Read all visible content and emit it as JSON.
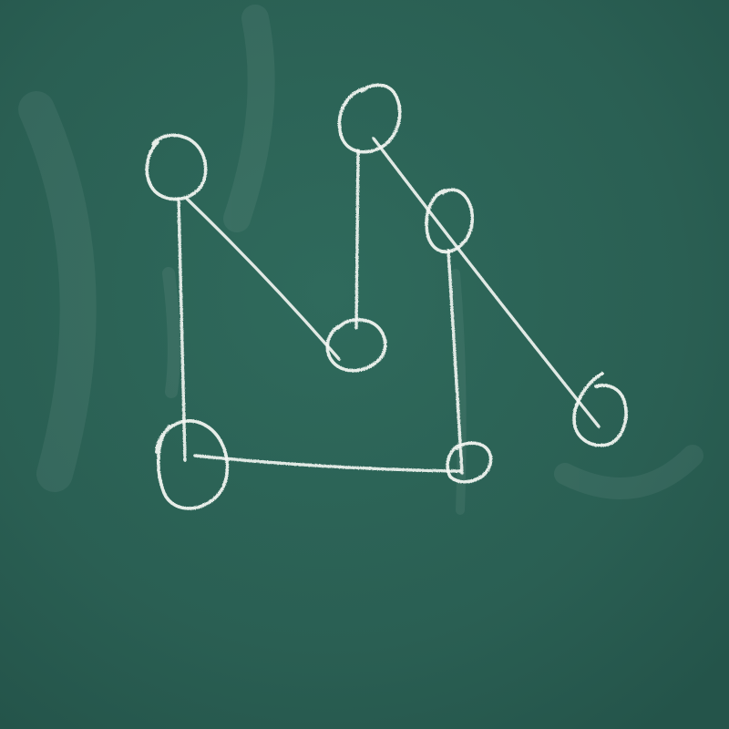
{
  "diagram": {
    "type": "graph",
    "directed": false,
    "nodes": [
      {
        "id": "a",
        "name": "node-top-left"
      },
      {
        "id": "b",
        "name": "node-top-center"
      },
      {
        "id": "c",
        "name": "node-right-upper"
      },
      {
        "id": "d",
        "name": "node-center"
      },
      {
        "id": "e",
        "name": "node-right-lower"
      },
      {
        "id": "f",
        "name": "node-bottom-left"
      },
      {
        "id": "g",
        "name": "node-bottom-right"
      }
    ],
    "edges": [
      {
        "from": "a",
        "to": "d"
      },
      {
        "from": "a",
        "to": "f"
      },
      {
        "from": "b",
        "to": "d"
      },
      {
        "from": "b",
        "to": "e"
      },
      {
        "from": "c",
        "to": "g"
      },
      {
        "from": "f",
        "to": "g"
      }
    ]
  },
  "colors": {
    "board": "#2c6255",
    "chalk": "#f4f7f3"
  }
}
